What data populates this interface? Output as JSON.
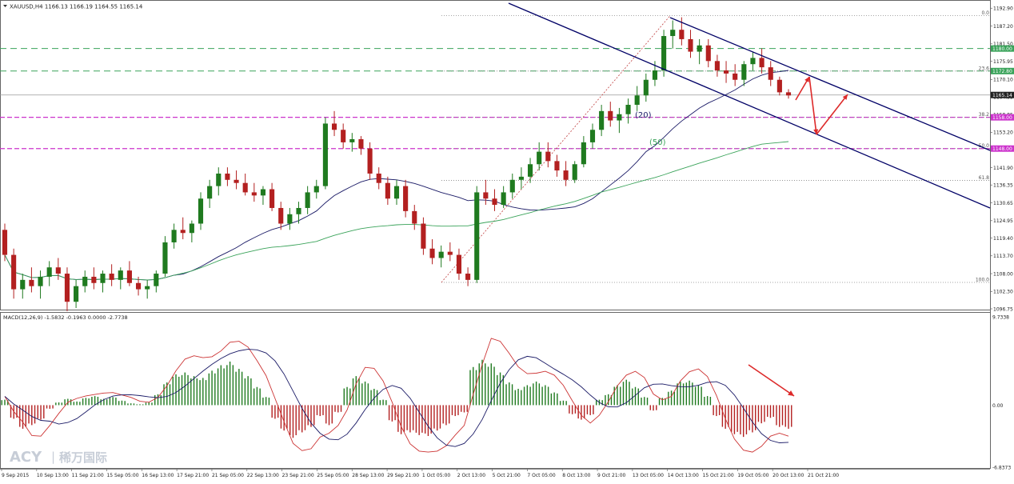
{
  "header": {
    "symbol_line": "XAUUSD,H4  1166.13 1166.19 1164.55 1165.14"
  },
  "chart_data": {
    "type": "candlestick",
    "symbol": "XAUUSD",
    "timeframe": "H4",
    "ohlc": {
      "open": 1166.13,
      "high": 1166.19,
      "low": 1164.55,
      "close": 1165.14
    },
    "ylim": [
      1096.75,
      1194.5
    ],
    "y_ticks": [
      "1192.90",
      "1187.20",
      "1181.50",
      "1175.95",
      "1170.10",
      "1164.55",
      "1158.85",
      "1153.20",
      "1147.60",
      "1141.90",
      "1136.35",
      "1130.65",
      "1124.95",
      "1119.40",
      "1113.70",
      "1108.00",
      "1102.30",
      "1096.75"
    ],
    "x_ticks": [
      "9 Sep 2015",
      "10 Sep 13:00",
      "11 Sep 21:00",
      "15 Sep 05:00",
      "16 Sep 13:00",
      "17 Sep 21:00",
      "21 Sep 05:00",
      "22 Sep 13:00",
      "23 Sep 21:00",
      "25 Sep 05:00",
      "28 Sep 13:00",
      "29 Sep 21:00",
      "1 Oct 05:00",
      "2 Oct 13:00",
      "5 Oct 21:00",
      "7 Oct 05:00",
      "8 Oct 13:00",
      "9 Oct 21:00",
      "13 Oct 05:00",
      "14 Oct 13:00",
      "15 Oct 21:00",
      "19 Oct 05:00",
      "20 Oct 13:00",
      "21 Oct 21:00"
    ],
    "ma_labels": [
      "(20)",
      "(50)"
    ],
    "price_tags": [
      {
        "value": 1180.0,
        "label": "1180.00",
        "color": "#3aa35a"
      },
      {
        "value": 1172.8,
        "label": "1172.80",
        "color": "#3aa35a"
      },
      {
        "value": 1165.14,
        "label": "1165.14",
        "color": "#222222"
      },
      {
        "value": 1158.0,
        "label": "1158.00",
        "color": "#cc33cc"
      },
      {
        "value": 1148.0,
        "label": "1148.00",
        "color": "#cc33cc"
      }
    ],
    "fibonacci": {
      "high": 1190.5,
      "low": 1105.2,
      "levels": [
        {
          "label": "0.0",
          "value": 1190.5
        },
        {
          "label": "23.6",
          "value": 1172.8
        },
        {
          "label": "38.2",
          "value": 1158.0
        },
        {
          "label": "50.0",
          "value": 1148.0
        },
        {
          "label": "61.8",
          "value": 1137.8
        },
        {
          "label": "100.0",
          "value": 1105.2
        }
      ]
    },
    "candles_approx": [
      [
        1122,
        1124,
        1112,
        1114
      ],
      [
        1114,
        1116,
        1100,
        1103
      ],
      [
        1103,
        1108,
        1100,
        1106
      ],
      [
        1106,
        1110,
        1102,
        1104
      ],
      [
        1104,
        1109,
        1100,
        1107
      ],
      [
        1107,
        1112,
        1104,
        1110
      ],
      [
        1110,
        1113,
        1106,
        1108
      ],
      [
        1108,
        1110,
        1096,
        1099
      ],
      [
        1099,
        1106,
        1097,
        1104
      ],
      [
        1104,
        1109,
        1102,
        1107
      ],
      [
        1107,
        1110,
        1103,
        1105
      ],
      [
        1105,
        1109,
        1102,
        1108
      ],
      [
        1108,
        1111,
        1104,
        1106
      ],
      [
        1106,
        1110,
        1103,
        1109
      ],
      [
        1109,
        1112,
        1104,
        1105
      ],
      [
        1105,
        1107,
        1101,
        1103
      ],
      [
        1103,
        1106,
        1100,
        1104
      ],
      [
        1104,
        1109,
        1102,
        1108
      ],
      [
        1108,
        1120,
        1107,
        1118
      ],
      [
        1118,
        1124,
        1116,
        1122
      ],
      [
        1122,
        1126,
        1119,
        1121
      ],
      [
        1121,
        1125,
        1118,
        1124
      ],
      [
        1124,
        1134,
        1122,
        1132
      ],
      [
        1132,
        1138,
        1129,
        1136
      ],
      [
        1136,
        1142,
        1133,
        1140
      ],
      [
        1140,
        1142,
        1136,
        1138
      ],
      [
        1138,
        1141,
        1135,
        1137
      ],
      [
        1137,
        1140,
        1133,
        1134
      ],
      [
        1134,
        1137,
        1131,
        1133
      ],
      [
        1133,
        1136,
        1130,
        1135
      ],
      [
        1135,
        1137,
        1128,
        1129
      ],
      [
        1129,
        1131,
        1122,
        1124
      ],
      [
        1124,
        1129,
        1122,
        1127
      ],
      [
        1127,
        1131,
        1124,
        1129
      ],
      [
        1129,
        1136,
        1127,
        1134
      ],
      [
        1134,
        1138,
        1132,
        1136
      ],
      [
        1136,
        1158,
        1135,
        1156
      ],
      [
        1156,
        1160,
        1152,
        1154
      ],
      [
        1154,
        1156,
        1148,
        1150
      ],
      [
        1150,
        1153,
        1147,
        1151
      ],
      [
        1151,
        1152,
        1146,
        1148
      ],
      [
        1148,
        1150,
        1138,
        1140
      ],
      [
        1140,
        1142,
        1135,
        1137
      ],
      [
        1137,
        1139,
        1130,
        1132
      ],
      [
        1132,
        1138,
        1130,
        1136
      ],
      [
        1136,
        1138,
        1126,
        1128
      ],
      [
        1128,
        1130,
        1122,
        1124
      ],
      [
        1124,
        1126,
        1114,
        1116
      ],
      [
        1116,
        1119,
        1111,
        1113
      ],
      [
        1113,
        1117,
        1110,
        1115
      ],
      [
        1115,
        1118,
        1112,
        1114
      ],
      [
        1114,
        1116,
        1106,
        1108
      ],
      [
        1108,
        1110,
        1104,
        1106
      ],
      [
        1106,
        1136,
        1105,
        1134
      ],
      [
        1134,
        1138,
        1130,
        1132
      ],
      [
        1132,
        1135,
        1128,
        1130
      ],
      [
        1130,
        1136,
        1129,
        1134
      ],
      [
        1134,
        1140,
        1132,
        1138
      ],
      [
        1138,
        1142,
        1135,
        1139
      ],
      [
        1139,
        1145,
        1137,
        1143
      ],
      [
        1143,
        1150,
        1141,
        1147
      ],
      [
        1147,
        1150,
        1142,
        1144
      ],
      [
        1144,
        1146,
        1139,
        1141
      ],
      [
        1141,
        1144,
        1136,
        1138
      ],
      [
        1138,
        1144,
        1137,
        1143
      ],
      [
        1143,
        1152,
        1142,
        1150
      ],
      [
        1150,
        1156,
        1148,
        1154
      ],
      [
        1154,
        1162,
        1152,
        1160
      ],
      [
        1160,
        1163,
        1155,
        1157
      ],
      [
        1157,
        1161,
        1153,
        1159
      ],
      [
        1159,
        1164,
        1156,
        1162
      ],
      [
        1162,
        1168,
        1160,
        1165
      ],
      [
        1165,
        1172,
        1163,
        1170
      ],
      [
        1170,
        1176,
        1168,
        1173
      ],
      [
        1173,
        1186,
        1171,
        1184
      ],
      [
        1184,
        1189,
        1180,
        1186
      ],
      [
        1186,
        1190,
        1181,
        1183
      ],
      [
        1183,
        1186,
        1177,
        1179
      ],
      [
        1179,
        1183,
        1175,
        1181
      ],
      [
        1181,
        1183,
        1174,
        1176
      ],
      [
        1176,
        1178,
        1171,
        1173
      ],
      [
        1173,
        1176,
        1169,
        1172
      ],
      [
        1172,
        1175,
        1168,
        1170
      ],
      [
        1170,
        1176,
        1168,
        1175
      ],
      [
        1175,
        1179,
        1173,
        1177
      ],
      [
        1177,
        1180,
        1172,
        1174
      ],
      [
        1174,
        1176,
        1168,
        1170
      ],
      [
        1170,
        1171,
        1165,
        1166
      ],
      [
        1166,
        1167,
        1164,
        1165
      ]
    ],
    "macd": {
      "label": "MACD(12,26,9) -1.5832 -0.1963 0.0000 -2.7738",
      "ylim": [
        -6.8373,
        9.7338
      ],
      "y_ticks": [
        "9.7338",
        "0.00",
        "-6.8373"
      ],
      "histogram_approx": [
        0.6,
        -1.5,
        -2.6,
        -2.2,
        -1.6,
        -0.4,
        0.3,
        0.7,
        0.4,
        0.8,
        1.0,
        0.7,
        0.9,
        0.5,
        0.2,
        0.1,
        0.3,
        1.2,
        2.5,
        3.4,
        3.6,
        3.2,
        3.0,
        3.8,
        4.4,
        4.8,
        4.0,
        3.2,
        2.0,
        0.9,
        -1.5,
        -2.8,
        -3.6,
        -3.0,
        -2.4,
        -1.2,
        -2.2,
        -0.8,
        2.0,
        3.2,
        2.6,
        1.8,
        0.6,
        -1.8,
        -3.2,
        -3.0,
        -3.3,
        -3.4,
        -2.8,
        -2.2,
        -1.2,
        -0.8,
        4.2,
        5.0,
        4.6,
        3.6,
        2.5,
        1.8,
        2.2,
        2.6,
        2.2,
        1.4,
        0.5,
        -1.0,
        -1.6,
        -1.1,
        0.6,
        1.2,
        2.2,
        2.8,
        2.0,
        0.9,
        -0.6,
        0.8,
        1.6,
        2.6,
        2.7,
        2.2,
        1.0,
        -1.2,
        -2.6,
        -3.2,
        -3.5,
        -3.0,
        -2.0,
        -1.4,
        -2.4,
        -2.6
      ],
      "arrow_color": "#dd2a2a"
    },
    "colors": {
      "bull": "#1f7a1f",
      "bear": "#b32020",
      "ma20": "#1a1a66",
      "ma50": "#3aa35a",
      "channel": "#000066",
      "fib": "#888888",
      "level_green": "#3aa35a",
      "level_magenta": "#cc33cc",
      "annotation_arrow": "#dd2a2a",
      "macd_signal": "#1a1a66",
      "macd_line": "#cc3333"
    }
  },
  "watermark": {
    "brand": "ACY",
    "separator": "|",
    "cn_name": "稀万国际"
  }
}
